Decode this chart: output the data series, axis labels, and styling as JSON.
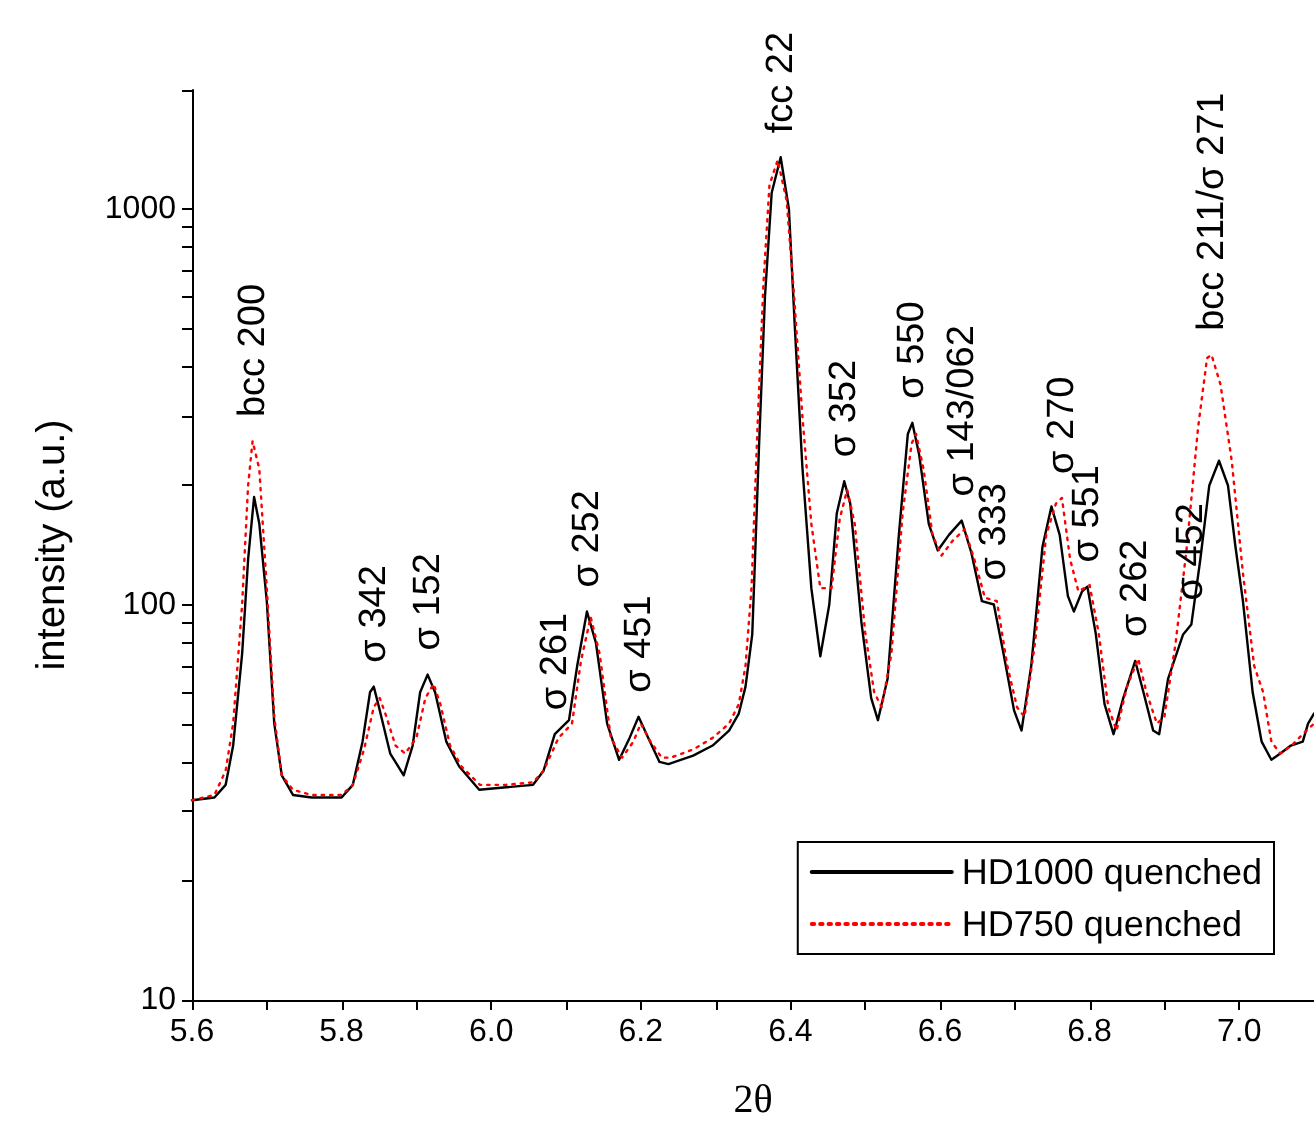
{
  "chart_data": {
    "type": "line",
    "xlabel": "2θ",
    "ylabel": "intensity (a.u.)",
    "log": "y",
    "grid": false,
    "legend": "bottom right",
    "marker": "none",
    "xlim": [
      5.6,
      7.1
    ],
    "xticks": [
      5.6,
      {
        "value": 5.7,
        "label": null
      },
      5.8,
      {
        "value": 5.9,
        "label": null
      },
      "6.0",
      {
        "value": 6.1,
        "label": null
      },
      6.2,
      {
        "value": 6.3,
        "label": null
      },
      6.4,
      {
        "value": 6.5,
        "label": null
      },
      6.6,
      {
        "value": 6.7,
        "label": null
      },
      6.8,
      {
        "value": 6.9,
        "label": null
      },
      "7.0"
    ],
    "ylim": [
      10,
      2000
    ],
    "yticks": [
      10,
      {
        "value": 20,
        "label": null
      },
      {
        "value": 30,
        "label": null
      },
      {
        "value": 40,
        "label": null
      },
      {
        "value": 50,
        "label": null
      },
      {
        "value": 60,
        "label": null
      },
      {
        "value": 70,
        "label": null
      },
      {
        "value": 80,
        "label": null
      },
      {
        "value": 90,
        "label": null
      },
      100,
      {
        "value": 200,
        "label": null
      },
      {
        "value": 300,
        "label": null
      },
      {
        "value": 400,
        "label": null
      },
      {
        "value": 500,
        "label": null
      },
      {
        "value": 600,
        "label": null
      },
      {
        "value": 700,
        "label": null
      },
      {
        "value": 800,
        "label": null
      },
      {
        "value": 900,
        "label": null
      },
      1000,
      {
        "value": 2000,
        "label": null
      }
    ],
    "series": [
      {
        "name": "HD1000 quenched",
        "color": "#000000",
        "line_style": "solid",
        "x": [
          5.6,
          5.63,
          5.645,
          5.655,
          5.667,
          5.675,
          5.683,
          5.69,
          5.7,
          5.71,
          5.72,
          5.735,
          5.76,
          5.8,
          5.815,
          5.828,
          5.838,
          5.843,
          5.85,
          5.865,
          5.883,
          5.895,
          5.905,
          5.915,
          5.925,
          5.94,
          5.957,
          5.984,
          6.02,
          6.056,
          6.07,
          6.085,
          6.104,
          6.115,
          6.128,
          6.14,
          6.155,
          6.171,
          6.185,
          6.197,
          6.21,
          6.225,
          6.237,
          6.27,
          6.296,
          6.318,
          6.331,
          6.34,
          6.349,
          6.352,
          6.358,
          6.366,
          6.375,
          6.387,
          6.398,
          6.406,
          6.416,
          6.428,
          6.44,
          6.452,
          6.462,
          6.472,
          6.48,
          6.495,
          6.508,
          6.517,
          6.53,
          6.545,
          6.557,
          6.563,
          6.572,
          6.585,
          6.597,
          6.612,
          6.629,
          6.642,
          6.656,
          6.672,
          6.685,
          6.699,
          6.709,
          6.722,
          6.737,
          6.749,
          6.76,
          6.771,
          6.779,
          6.79,
          6.797,
          6.808,
          6.82,
          6.832,
          6.845,
          6.861,
          6.872,
          6.885,
          6.893,
          6.905,
          6.925,
          6.936,
          6.948,
          6.96,
          6.973,
          6.985,
          6.995,
          7.005,
          7.018,
          7.03,
          7.043,
          7.055,
          7.069,
          7.085,
          7.092,
          7.1
        ],
        "values": [
          32,
          32.5,
          35,
          44,
          75,
          130,
          187,
          160,
          102,
          50,
          37,
          33,
          32.5,
          32.5,
          35,
          45,
          60,
          62,
          55,
          42,
          37,
          44,
          60,
          66.5,
          60,
          45,
          39,
          34,
          34.5,
          35,
          38,
          47,
          51,
          70,
          96,
          80,
          50,
          40.5,
          46,
          52,
          46,
          40,
          39.5,
          41.5,
          44,
          48,
          53,
          62,
          84,
          120,
          250,
          600,
          1100,
          1352,
          1000,
          500,
          223,
          110,
          74,
          100,
          170,
          205,
          180,
          90,
          58,
          51,
          65,
          150,
          270,
          288,
          240,
          160,
          137,
          150,
          163,
          135,
          102,
          100,
          75,
          54,
          48,
          70,
          140,
          177,
          150,
          105,
          96,
          108,
          111,
          85,
          56,
          47,
          58,
          72,
          60,
          48,
          47,
          65,
          84,
          89,
          130,
          200,
          231,
          200,
          140,
          102,
          60,
          45,
          40.5,
          42,
          44,
          45,
          50,
          53
        ]
      },
      {
        "name": "HD750 quenched",
        "color": "#ff0000",
        "line_style": "dotted",
        "x": [
          5.6,
          5.63,
          5.645,
          5.655,
          5.667,
          5.675,
          5.681,
          5.69,
          5.7,
          5.71,
          5.72,
          5.735,
          5.76,
          5.8,
          5.815,
          5.83,
          5.843,
          5.851,
          5.86,
          5.872,
          5.885,
          5.9,
          5.912,
          5.923,
          5.932,
          5.945,
          5.96,
          5.985,
          6.02,
          6.056,
          6.07,
          6.09,
          6.108,
          6.12,
          6.133,
          6.145,
          6.16,
          6.175,
          6.19,
          6.2,
          6.213,
          6.228,
          6.24,
          6.27,
          6.296,
          6.318,
          6.331,
          6.34,
          6.348,
          6.356,
          6.364,
          6.372,
          6.383,
          6.395,
          6.405,
          6.416,
          6.428,
          6.44,
          6.455,
          6.466,
          6.476,
          6.486,
          6.5,
          6.512,
          6.522,
          6.535,
          6.55,
          6.562,
          6.568,
          6.578,
          6.59,
          6.602,
          6.617,
          6.633,
          6.646,
          6.66,
          6.676,
          6.69,
          6.703,
          6.713,
          6.727,
          6.742,
          6.755,
          6.763,
          6.774,
          6.785,
          6.8,
          6.812,
          6.825,
          6.836,
          6.85,
          6.865,
          6.876,
          6.89,
          6.9,
          6.915,
          6.93,
          6.945,
          6.957,
          6.963,
          6.975,
          6.99,
          7.005,
          7.02,
          7.032,
          7.043,
          7.055,
          7.07,
          7.085,
          7.1
        ],
        "values": [
          32,
          33,
          38,
          50,
          100,
          200,
          259,
          220,
          110,
          52,
          37,
          34,
          33,
          33,
          35,
          43,
          55,
          58,
          52,
          44,
          42,
          46,
          58,
          63,
          56,
          44,
          39,
          35,
          35,
          35.5,
          38,
          46,
          50,
          72,
          93,
          75,
          46,
          41,
          45,
          50,
          45,
          41,
          41,
          43,
          46,
          50,
          56,
          70,
          110,
          280,
          650,
          1150,
          1330,
          1050,
          600,
          300,
          160,
          110,
          110,
          165,
          195,
          160,
          85,
          60,
          55,
          75,
          170,
          255,
          270,
          220,
          150,
          133,
          145,
          155,
          130,
          104,
          102,
          70,
          55,
          52,
          80,
          150,
          180,
          186,
          130,
          108,
          112,
          85,
          55,
          48,
          62,
          73,
          60,
          50,
          52,
          80,
          140,
          280,
          420,
          428,
          360,
          231,
          120,
          70,
          60,
          45,
          42,
          44,
          47,
          50
        ]
      }
    ],
    "annotations": [
      {
        "text": "bcc 200",
        "x": 5.681,
        "y": 259
      },
      {
        "text": "σ 342",
        "x": 5.843,
        "y": 62
      },
      {
        "text": "σ 152",
        "x": 5.915,
        "y": 66.5
      },
      {
        "text": "σ 261",
        "x": 6.085,
        "y": 47
      },
      {
        "text": "σ 252",
        "x": 6.128,
        "y": 96
      },
      {
        "text": "σ 451",
        "x": 6.197,
        "y": 52
      },
      {
        "text": "fcc 22",
        "x": 6.387,
        "y": 1352
      },
      {
        "text": "σ 352",
        "x": 6.472,
        "y": 205
      },
      {
        "text": "σ 550",
        "x": 6.563,
        "y": 288
      },
      {
        "text": "σ 143/062",
        "x": 6.629,
        "y": 163
      },
      {
        "text": "σ 333",
        "x": 6.672,
        "y": 100
      },
      {
        "text": "σ 270",
        "x": 6.763,
        "y": 186
      },
      {
        "text": "σ 551",
        "x": 6.797,
        "y": 111
      },
      {
        "text": "σ 262",
        "x": 6.861,
        "y": 72
      },
      {
        "text": "σ 452",
        "x": 6.936,
        "y": 89
      },
      {
        "text": "bcc 211/σ 271",
        "x": 6.963,
        "y": 428
      }
    ]
  }
}
